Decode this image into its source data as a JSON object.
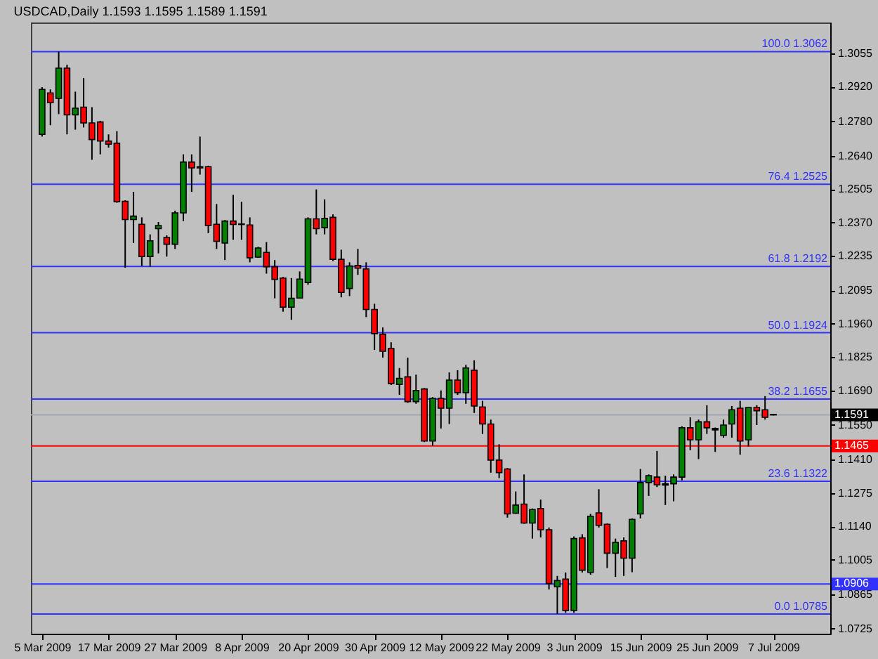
{
  "chart_data": {
    "type": "candlestick",
    "title": "USDCAD,Daily 1.1593 1.1595 1.1589 1.1591",
    "categories": [
      "5 Mar 2009",
      null,
      null,
      null,
      null,
      null,
      null,
      null,
      "17 Mar 2009",
      null,
      null,
      null,
      null,
      null,
      null,
      null,
      "27 Mar 2009",
      null,
      null,
      null,
      null,
      null,
      null,
      null,
      "8 Apr 2009",
      null,
      null,
      null,
      null,
      null,
      null,
      null,
      "20 Apr 2009",
      null,
      null,
      null,
      null,
      null,
      null,
      null,
      "30 Apr 2009",
      null,
      null,
      null,
      null,
      null,
      null,
      null,
      "12 May 2009",
      null,
      null,
      null,
      null,
      null,
      null,
      null,
      "22 May 2009",
      null,
      null,
      null,
      null,
      null,
      null,
      null,
      "3 Jun 2009",
      null,
      null,
      null,
      null,
      null,
      null,
      null,
      "15 Jun 2009",
      null,
      null,
      null,
      null,
      null,
      null,
      null,
      "25 Jun 2009",
      null,
      null,
      null,
      null,
      null,
      null,
      null,
      "7 Jul 2009"
    ],
    "ohlc": [
      [
        1.2727,
        1.2918,
        1.2718,
        1.2909
      ],
      [
        1.2895,
        1.2909,
        1.2764,
        1.2855
      ],
      [
        1.2873,
        1.3062,
        1.2809,
        1.2995
      ],
      [
        1.2995,
        1.3009,
        1.2727,
        1.2806
      ],
      [
        1.2806,
        1.29,
        1.2746,
        1.2833
      ],
      [
        1.2837,
        1.2955,
        1.2755,
        1.2773
      ],
      [
        1.2773,
        1.2837,
        1.2624,
        1.2706
      ],
      [
        1.2777,
        1.2782,
        1.2646,
        1.27
      ],
      [
        1.27,
        1.2727,
        1.2673,
        1.2687
      ],
      [
        1.2691,
        1.274,
        1.245,
        1.2454
      ],
      [
        1.2456,
        1.246,
        1.2187,
        1.2382
      ],
      [
        1.2382,
        1.2494,
        1.2287,
        1.2396
      ],
      [
        1.2363,
        1.2391,
        1.2194,
        1.2232
      ],
      [
        1.2232,
        1.2322,
        1.2191,
        1.2296
      ],
      [
        1.2345,
        1.2372,
        1.2245,
        1.2358
      ],
      [
        1.2309,
        1.2318,
        1.2232,
        1.2282
      ],
      [
        1.2282,
        1.2418,
        1.2263,
        1.2409
      ],
      [
        1.2409,
        1.2646,
        1.2376,
        1.2615
      ],
      [
        1.2615,
        1.2646,
        1.2494,
        1.2591
      ],
      [
        1.2596,
        1.2718,
        1.2564,
        1.2591
      ],
      [
        1.2596,
        1.26,
        1.2327,
        1.2358
      ],
      [
        1.2363,
        1.2445,
        1.2263,
        1.2294
      ],
      [
        1.2287,
        1.238,
        1.2218,
        1.2376
      ],
      [
        1.2376,
        1.2482,
        1.23,
        1.2362
      ],
      [
        1.2364,
        1.2454,
        1.23,
        1.2362
      ],
      [
        1.236,
        1.2391,
        1.2209,
        1.2227
      ],
      [
        1.223,
        1.2272,
        1.2227,
        1.2267
      ],
      [
        1.2249,
        1.2291,
        1.2163,
        1.2191
      ],
      [
        1.2191,
        1.2218,
        1.2063,
        1.214
      ],
      [
        1.2145,
        1.215,
        1.2009,
        1.2027
      ],
      [
        1.2027,
        1.2145,
        1.1976,
        1.2063
      ],
      [
        1.2064,
        1.2172,
        1.2063,
        1.2141
      ],
      [
        1.2127,
        1.2391,
        1.2118,
        1.2385
      ],
      [
        1.2385,
        1.2504,
        1.2322,
        1.2345
      ],
      [
        1.2349,
        1.2464,
        1.2322,
        1.2387
      ],
      [
        1.2391,
        1.2403,
        1.2214,
        1.2221
      ],
      [
        1.2221,
        1.226,
        1.2067,
        1.2087
      ],
      [
        1.2103,
        1.2209,
        1.2072,
        1.2194
      ],
      [
        1.2196,
        1.2263,
        1.2158,
        1.2185
      ],
      [
        1.2182,
        1.2209,
        1.1987,
        1.2018
      ],
      [
        1.2018,
        1.2041,
        1.1854,
        1.192
      ],
      [
        1.1918,
        1.1945,
        1.1823,
        1.1849
      ],
      [
        1.186,
        1.1885,
        1.1712,
        1.1718
      ],
      [
        1.1714,
        1.1781,
        1.1672,
        1.1739
      ],
      [
        1.1745,
        1.1823,
        1.164,
        1.1645
      ],
      [
        1.1645,
        1.1754,
        1.1636,
        1.169
      ],
      [
        1.1696,
        1.17,
        1.1481,
        1.1485
      ],
      [
        1.1485,
        1.1663,
        1.1466,
        1.1658
      ],
      [
        1.1658,
        1.169,
        1.1536,
        1.1618
      ],
      [
        1.1618,
        1.1763,
        1.1554,
        1.1732
      ],
      [
        1.1732,
        1.1772,
        1.1672,
        1.1681
      ],
      [
        1.1681,
        1.1794,
        1.1636,
        1.1781
      ],
      [
        1.1772,
        1.1812,
        1.1599,
        1.1627
      ],
      [
        1.1623,
        1.1648,
        1.1514,
        1.1554
      ],
      [
        1.1554,
        1.1572,
        1.1357,
        1.1408
      ],
      [
        1.1408,
        1.1472,
        1.1335,
        1.1357
      ],
      [
        1.1372,
        1.1376,
        1.1175,
        1.119
      ],
      [
        1.1193,
        1.1281,
        1.119,
        1.1226
      ],
      [
        1.123,
        1.135,
        1.115,
        1.1153
      ],
      [
        1.1153,
        1.1212,
        1.109,
        1.1208
      ],
      [
        1.1212,
        1.1248,
        1.1095,
        1.1126
      ],
      [
        1.1126,
        1.1135,
        1.0884,
        1.0908
      ],
      [
        1.0895,
        1.0939,
        1.0785,
        1.092
      ],
      [
        1.0926,
        1.0953,
        1.079,
        1.0799
      ],
      [
        1.0799,
        1.1099,
        1.079,
        1.109
      ],
      [
        1.1093,
        1.1108,
        1.0953,
        1.0962
      ],
      [
        1.0953,
        1.119,
        1.0944,
        1.1181
      ],
      [
        1.1194,
        1.129,
        1.1135,
        1.1144
      ],
      [
        1.1148,
        1.1152,
        1.0971,
        1.1031
      ],
      [
        1.1031,
        1.109,
        1.0935,
        1.1075
      ],
      [
        1.1081,
        1.1095,
        1.0939,
        1.1011
      ],
      [
        1.1011,
        1.1172,
        1.0954,
        1.1168
      ],
      [
        1.119,
        1.1372,
        1.1172,
        1.1317
      ],
      [
        1.1317,
        1.135,
        1.1263,
        1.1345
      ],
      [
        1.1339,
        1.1445,
        1.1299,
        1.1308
      ],
      [
        1.1312,
        1.1345,
        1.1226,
        1.1307
      ],
      [
        1.1312,
        1.135,
        1.1241,
        1.1339
      ],
      [
        1.1339,
        1.1545,
        1.1326,
        1.1539
      ],
      [
        1.1539,
        1.1581,
        1.1448,
        1.149
      ],
      [
        1.149,
        1.1572,
        1.1412,
        1.1563
      ],
      [
        1.1563,
        1.163,
        1.1514,
        1.1539
      ],
      [
        1.1536,
        1.154,
        1.1441,
        1.153
      ],
      [
        1.1508,
        1.1572,
        1.1499,
        1.155
      ],
      [
        1.1554,
        1.1627,
        1.1499,
        1.1612
      ],
      [
        1.1618,
        1.1648,
        1.143,
        1.1485
      ],
      [
        1.149,
        1.1623,
        1.1463,
        1.1621
      ],
      [
        1.1621,
        1.163,
        1.155,
        1.1608
      ],
      [
        1.1612,
        1.1667,
        1.1572,
        1.1581
      ],
      [
        1.1593,
        1.1595,
        1.1589,
        1.1591
      ]
    ],
    "colors": [
      "#008000",
      "#ff0000",
      "#008000",
      "#ff0000",
      "#008000",
      "#ff0000",
      "#ff0000",
      "#ff0000",
      "#ff0000",
      "#ff0000",
      "#ff0000",
      "#008000",
      "#ff0000",
      "#008000",
      "#008000",
      "#ff0000",
      "#008000",
      "#008000",
      "#ff0000",
      "#ff0000",
      "#ff0000",
      "#ff0000",
      "#008000",
      "#ff0000",
      "#000000",
      "#ff0000",
      "#008000",
      "#ff0000",
      "#ff0000",
      "#ff0000",
      "#008000",
      "#008000",
      "#008000",
      "#ff0000",
      "#008000",
      "#ff0000",
      "#ff0000",
      "#008000",
      "#ff0000",
      "#ff0000",
      "#ff0000",
      "#ff0000",
      "#ff0000",
      "#008000",
      "#ff0000",
      "#008000",
      "#ff0000",
      "#008000",
      "#ff0000",
      "#008000",
      "#ff0000",
      "#008000",
      "#ff0000",
      "#ff0000",
      "#ff0000",
      "#ff0000",
      "#ff0000",
      "#008000",
      "#ff0000",
      "#008000",
      "#ff0000",
      "#ff0000",
      "#008000",
      "#ff0000",
      "#008000",
      "#ff0000",
      "#008000",
      "#ff0000",
      "#ff0000",
      "#008000",
      "#ff0000",
      "#008000",
      "#008000",
      "#008000",
      "#ff0000",
      "#000000",
      "#008000",
      "#008000",
      "#ff0000",
      "#008000",
      "#ff0000",
      "#000000",
      "#008000",
      "#008000",
      "#ff0000",
      "#008000",
      "#ff0000",
      "#ff0000",
      "#000000"
    ],
    "ylim": [
      1.0705,
      1.318
    ],
    "yticks": [
      1.3055,
      {
        "value": 1.292,
        "label": "1.2920"
      },
      {
        "value": 1.278,
        "label": "1.2780"
      },
      {
        "value": 1.264,
        "label": "1.2640"
      },
      1.2505,
      {
        "value": 1.237,
        "label": "1.2370"
      },
      1.2235,
      1.2095,
      {
        "value": 1.196,
        "label": "1.1960"
      },
      1.1825,
      {
        "value": 1.169,
        "label": "1.1690"
      },
      {
        "value": 1.155,
        "label": "1.1550"
      },
      {
        "value": 1.141,
        "label": "1.1410"
      },
      1.1275,
      {
        "value": 1.114,
        "label": "1.1140"
      },
      1.1005,
      1.0865,
      1.0725
    ],
    "grid": false,
    "ref_lines": [
      {
        "axis": "y",
        "value": 1.3062,
        "label": "100.0 1.3062",
        "color": "#3232ff"
      },
      {
        "axis": "y",
        "value": 1.2525,
        "label": "76.4 1.2525",
        "color": "#3232ff"
      },
      {
        "axis": "y",
        "value": 1.2192,
        "label": "61.8 1.2192",
        "color": "#3232ff"
      },
      {
        "axis": "y",
        "value": 1.1924,
        "label": "50.0 1.1924",
        "color": "#3232ff"
      },
      {
        "axis": "y",
        "value": 1.1655,
        "label": "38.2 1.1655",
        "color": "#3232ff"
      },
      {
        "axis": "y",
        "value": 1.1591,
        "label": "1.1591",
        "color": "#a0a8b0"
      },
      {
        "axis": "y",
        "value": 1.1465,
        "label": "1.1465",
        "color": "#ff0000"
      },
      {
        "axis": "y",
        "value": 1.1322,
        "label": "23.6 1.1322",
        "color": "#3232ff"
      },
      {
        "axis": "y",
        "value": 1.0906,
        "label": "1.0906",
        "color": "#3232ff"
      },
      {
        "axis": "y",
        "value": 1.0785,
        "label": "0.0 1.0785",
        "color": "#3232ff"
      }
    ]
  }
}
